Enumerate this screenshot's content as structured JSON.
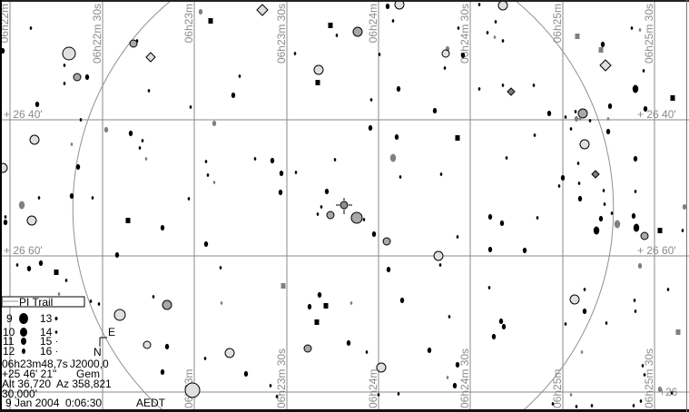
{
  "chart": {
    "ra_labels": [
      "06h22m",
      "06h22m 30s",
      "06h23m",
      "06h23m 30s",
      "06h24m",
      "06h24m 30s",
      "06h25m",
      "06h25m 30s"
    ],
    "dec_labels": [
      "+ 26 40'",
      "+ 26 60'",
      "+26"
    ],
    "colors": {
      "grid": "#8a8a8a",
      "star": "#000000",
      "faint_star": "#808080",
      "open_star": "#e0e0e0",
      "ring_star": "#a8a8a8",
      "trail": "#909090"
    }
  },
  "legend": {
    "trail_label": "PI Trail",
    "magnitudes": [
      "9",
      "10",
      "11",
      "12",
      "13",
      "14",
      "15",
      "16"
    ]
  },
  "compass": {
    "north": "N",
    "east": "E"
  },
  "info": {
    "ra": "06h23m48,7s",
    "epoch": "J2000,0",
    "dec": "+25 46' 21\"",
    "constellation": "Gem",
    "alt": "Alt 36,720",
    "az": "Az 358,821",
    "fov": "30,000'",
    "date": "9 Jan 2004",
    "time": "0:06:30",
    "timezone": "AEDT"
  }
}
